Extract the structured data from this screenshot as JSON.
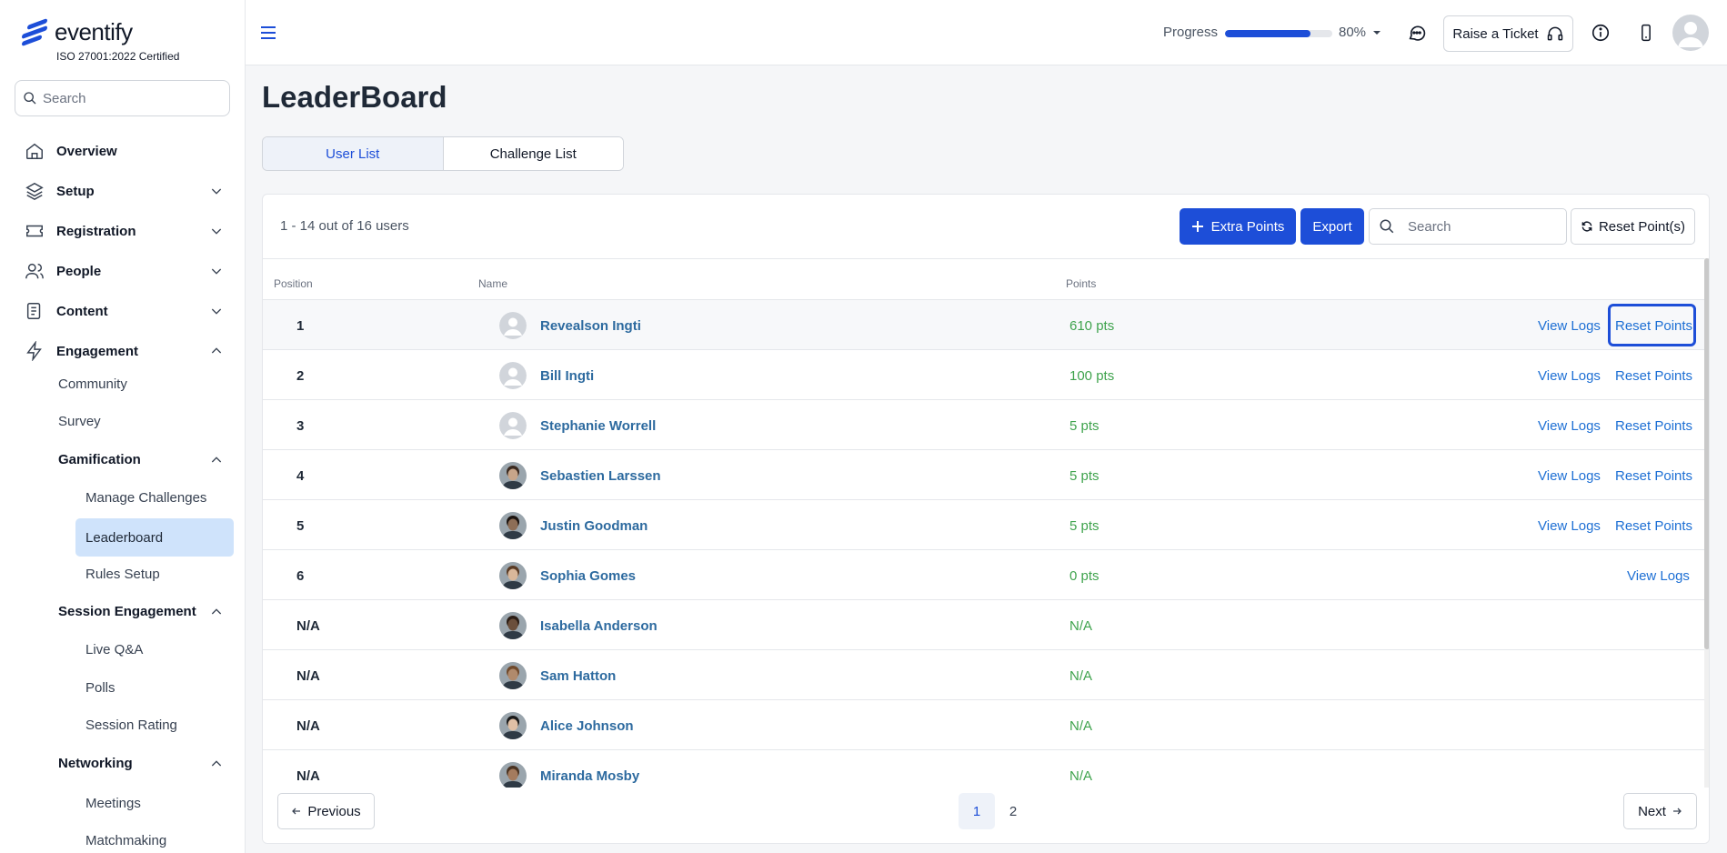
{
  "brand": {
    "name": "eventify",
    "certification": "ISO 27001:2022 Certified"
  },
  "sidebar": {
    "search_placeholder": "Search",
    "items": [
      {
        "label": "Overview",
        "icon": "home-icon"
      },
      {
        "label": "Setup",
        "icon": "layers-icon"
      },
      {
        "label": "Registration",
        "icon": "ticket-icon"
      },
      {
        "label": "People",
        "icon": "users-icon"
      },
      {
        "label": "Content",
        "icon": "document-icon"
      },
      {
        "label": "Engagement",
        "icon": "lightning-icon"
      }
    ],
    "engagement": {
      "community": "Community",
      "survey": "Survey",
      "gamification": "Gamification",
      "manage_challenges": "Manage Challenges",
      "leaderboard": "Leaderboard",
      "rules_setup": "Rules Setup",
      "session_engagement": "Session Engagement",
      "live_qa": "Live Q&A",
      "polls": "Polls",
      "session_rating": "Session Rating",
      "networking": "Networking",
      "meetings": "Meetings",
      "matchmaking": "Matchmaking"
    }
  },
  "topbar": {
    "progress_label": "Progress",
    "progress_value": 0.8,
    "progress_text": "80%",
    "ticket_label": "Raise a Ticket"
  },
  "page": {
    "title": "LeaderBoard",
    "tabs": [
      "User List",
      "Challenge List"
    ],
    "count_text": "1 - 14 out of 16 users",
    "extra_points_label": "Extra Points",
    "export_label": "Export",
    "search_placeholder": "Search",
    "reset_all_label": "Reset Point(s)"
  },
  "table": {
    "headers": {
      "position": "Position",
      "name": "Name",
      "points": "Points"
    },
    "view_logs": "View Logs",
    "reset_points": "Reset Points",
    "rows": [
      {
        "position": "1",
        "name": "Revealson Ingti",
        "points": "610 pts",
        "avatar": "placeholder",
        "reset": true
      },
      {
        "position": "2",
        "name": "Bill Ingti",
        "points": "100 pts",
        "avatar": "placeholder",
        "reset": true
      },
      {
        "position": "3",
        "name": "Stephanie Worrell",
        "points": "5 pts",
        "avatar": "placeholder",
        "reset": true
      },
      {
        "position": "4",
        "name": "Sebastien Larssen",
        "points": "5 pts",
        "avatar": "photo",
        "reset": true
      },
      {
        "position": "5",
        "name": "Justin Goodman",
        "points": "5 pts",
        "avatar": "photo",
        "reset": true
      },
      {
        "position": "6",
        "name": "Sophia Gomes",
        "points": "0 pts",
        "avatar": "photo",
        "reset": false
      },
      {
        "position": "N/A",
        "name": "Isabella Anderson",
        "points": "N/A",
        "avatar": "photo"
      },
      {
        "position": "N/A",
        "name": "Sam Hatton",
        "points": "N/A",
        "avatar": "photo"
      },
      {
        "position": "N/A",
        "name": "Alice Johnson",
        "points": "N/A",
        "avatar": "photo"
      },
      {
        "position": "N/A",
        "name": "Miranda Mosby",
        "points": "N/A",
        "avatar": "photo"
      }
    ]
  },
  "pagination": {
    "previous": "Previous",
    "next": "Next",
    "pages": [
      "1",
      "2"
    ],
    "current": "1"
  },
  "colors": {
    "accent": "#1d4ed8",
    "points_green": "#3fa34d",
    "name_blue": "#2d6a9f",
    "active_nav_bg": "#cfe3fb"
  }
}
